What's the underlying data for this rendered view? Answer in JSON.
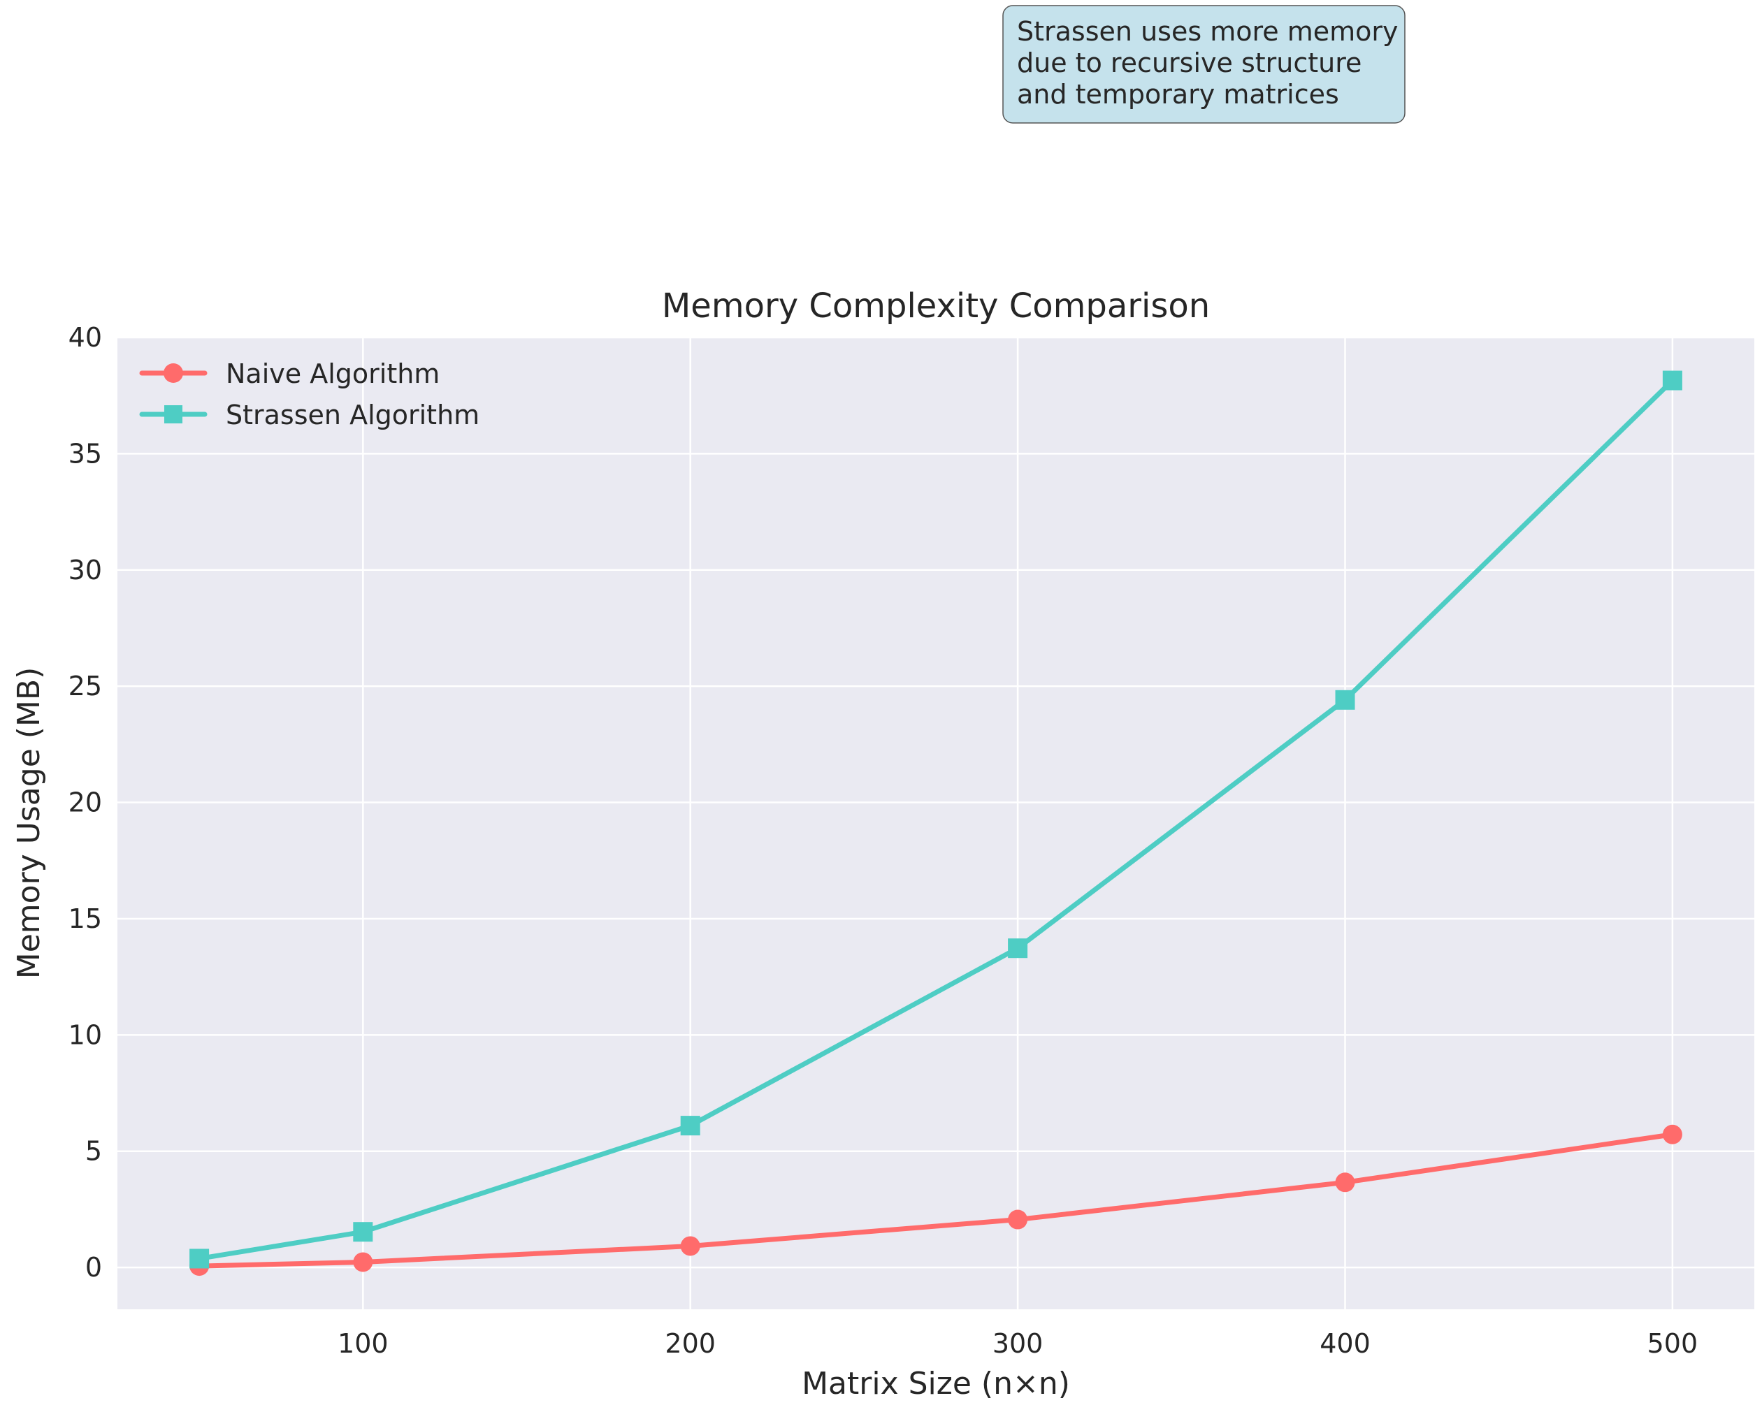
{
  "chart_data": {
    "type": "line",
    "title": "Memory Complexity Comparison",
    "xlabel": "Matrix Size (n×n)",
    "ylabel": "Memory Usage (MB)",
    "x": [
      50,
      100,
      200,
      300,
      400,
      500
    ],
    "xlim": [
      25,
      525
    ],
    "ylim": [
      -1.8,
      40
    ],
    "xticks": [
      100,
      200,
      300,
      400,
      500
    ],
    "yticks": [
      0,
      5,
      10,
      15,
      20,
      25,
      30,
      35,
      40
    ],
    "grid": true,
    "legend_position": "upper-left",
    "series": [
      {
        "name": "Naive Algorithm",
        "marker": "circle",
        "color": "#FF6B6B",
        "values": [
          0.06,
          0.23,
          0.92,
          2.06,
          3.66,
          5.72
        ]
      },
      {
        "name": "Strassen Algorithm",
        "marker": "square",
        "color": "#4ECDC4",
        "values": [
          0.38,
          1.53,
          6.1,
          13.73,
          24.41,
          38.15
        ]
      }
    ],
    "annotation": {
      "lines": [
        "Strassen uses more memory",
        "due to recursive structure",
        "and temporary matrices"
      ],
      "background": "#C5E2EC"
    }
  }
}
